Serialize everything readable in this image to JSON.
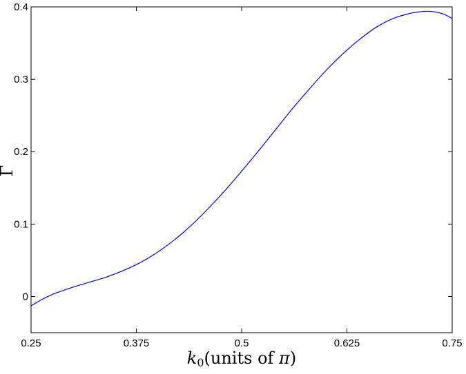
{
  "chart_data": {
    "type": "line",
    "title": "",
    "xlabel": "k₀(units of π)",
    "xlabel_parts": {
      "symbol": "k",
      "subscript": "0",
      "text": "(units of ",
      "pi": "π",
      "close": ")"
    },
    "ylabel": "Γ",
    "xlim": [
      0.25,
      0.75
    ],
    "ylim": [
      -0.05,
      0.4
    ],
    "xticks": [
      0.25,
      0.375,
      0.5,
      0.625,
      0.75
    ],
    "xtick_labels": [
      "0.25",
      "0.375",
      "0.5",
      "0.625",
      "0.75"
    ],
    "yticks": [
      0,
      0.1,
      0.2,
      0.3,
      0.4
    ],
    "ytick_labels": [
      "0",
      "0.1",
      "0.2",
      "0.3",
      "0.4"
    ],
    "grid": false,
    "legend": "none",
    "series": [
      {
        "color": "#0000ff",
        "x": [
          0.25,
          0.26,
          0.27,
          0.28,
          0.29,
          0.3,
          0.32,
          0.34,
          0.36,
          0.38,
          0.4,
          0.42,
          0.44,
          0.46,
          0.48,
          0.5,
          0.52,
          0.54,
          0.56,
          0.58,
          0.6,
          0.62,
          0.64,
          0.66,
          0.68,
          0.7,
          0.71,
          0.72,
          0.73,
          0.74,
          0.75
        ],
        "y": [
          -0.013,
          -0.006,
          0.0,
          0.005,
          0.009,
          0.013,
          0.02,
          0.027,
          0.036,
          0.047,
          0.061,
          0.078,
          0.098,
          0.121,
          0.146,
          0.173,
          0.201,
          0.23,
          0.259,
          0.286,
          0.312,
          0.335,
          0.355,
          0.372,
          0.384,
          0.391,
          0.393,
          0.394,
          0.393,
          0.39,
          0.384
        ]
      }
    ]
  }
}
